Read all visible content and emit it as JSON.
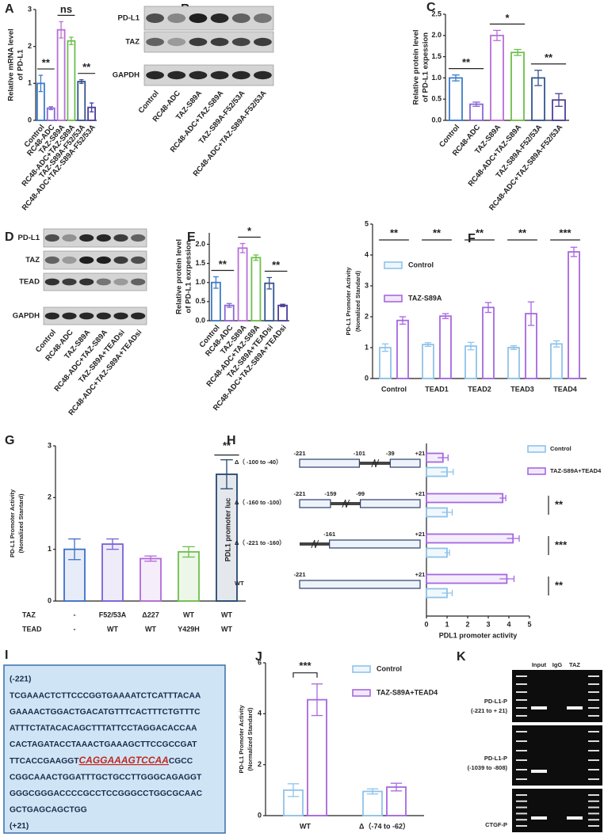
{
  "chart_data": [
    {
      "type": "bar",
      "panel": "A",
      "ylabel": [
        "Relative mRNA level",
        "of PD-L1"
      ],
      "categories": [
        "Control",
        "RC48-ADC",
        "TAZ-S89A",
        "RC48-ADC+TAZ-S89A",
        "TAZ-S89A-F52/53A",
        "RC48-ADC+TAZ-S89A-F52/53A"
      ],
      "values": [
        1.0,
        0.33,
        2.45,
        2.15,
        1.05,
        0.35
      ],
      "errors": [
        0.22,
        0.04,
        0.22,
        0.1,
        0.05,
        0.12
      ],
      "colors": [
        "#3d7cc9",
        "#8a66d6",
        "#b86ed8",
        "#6cbf4b",
        "#34548f",
        "#4a3f9a"
      ],
      "ylim": [
        0,
        3
      ],
      "yticks": [
        0,
        1,
        2,
        3
      ],
      "annotations": [
        "**",
        "ns",
        "**"
      ]
    },
    {
      "type": "bar",
      "panel": "C",
      "ylabel": [
        "Relative protein level",
        "of PD-L1 expession"
      ],
      "categories": [
        "Control",
        "RC48-ADC",
        "TAZ-S89A",
        "RC48-ADC+TAZ-S89A",
        "TAZ-S89A-F52/53A",
        "RC48-ADC+TAZ-S89A-F52/53A"
      ],
      "values": [
        1.0,
        0.38,
        2.0,
        1.6,
        1.0,
        0.48
      ],
      "errors": [
        0.07,
        0.05,
        0.12,
        0.07,
        0.18,
        0.15
      ],
      "colors": [
        "#3d7cc9",
        "#8a66d6",
        "#b86ed8",
        "#6cbf4b",
        "#34548f",
        "#4a3f9a"
      ],
      "ylim": [
        0,
        2.5
      ],
      "yticks": [
        {
          "value": 0,
          "label": "0.0"
        },
        {
          "value": 0.5,
          "label": "0.5"
        },
        {
          "value": 1,
          "label": "1.0"
        },
        {
          "value": 1.5,
          "label": "1.5"
        },
        {
          "value": 2,
          "label": "2.0"
        },
        {
          "value": 2.5,
          "label": "2.5"
        }
      ],
      "annotations": [
        "**",
        "*",
        "**"
      ]
    },
    {
      "type": "bar",
      "panel": "E",
      "ylabel": [
        "Relative protein level",
        "of PD-L1 exrpession"
      ],
      "categories": [
        "Control",
        "RC48-ADC",
        "TAZ-S89A",
        "RC48-ADC+TAZ-S89A",
        "TAZ-S89A+TEADsi",
        "RC48-ADC+TAZ-S89A+TEADsi"
      ],
      "values": [
        1.0,
        0.4,
        1.9,
        1.65,
        0.98,
        0.4
      ],
      "errors": [
        0.15,
        0.05,
        0.12,
        0.07,
        0.15,
        0.03
      ],
      "colors": [
        "#3d7cc9",
        "#8a66d6",
        "#b86ed8",
        "#6cbf4b",
        "#34548f",
        "#4a3f9a"
      ],
      "ylim": [
        0,
        2.3
      ],
      "yticks": [
        {
          "value": 0,
          "label": "0.0"
        },
        {
          "value": 0.5,
          "label": "0.5"
        },
        {
          "value": 1,
          "label": "1.0"
        },
        {
          "value": 1.5,
          "label": "1.5"
        },
        {
          "value": 2,
          "label": "2.0"
        }
      ],
      "annotations": [
        "**",
        "*",
        "**"
      ]
    },
    {
      "type": "bar",
      "panel": "F",
      "ylabel": [
        "PD-L1 Promoter Activity",
        "(Nomalized Standard)"
      ],
      "categories": [
        "Control",
        "TEAD1",
        "TEAD2",
        "TEAD3",
        "TEAD4"
      ],
      "series": [
        {
          "name": "Control",
          "color": "#8fc3ea",
          "values": [
            1.0,
            1.1,
            1.05,
            1.0,
            1.12
          ],
          "errors": [
            0.12,
            0.06,
            0.12,
            0.06,
            0.1
          ]
        },
        {
          "name": "TAZ-S89A",
          "color": "#a668e0",
          "values": [
            1.88,
            2.02,
            2.3,
            2.1,
            4.1
          ],
          "errors": [
            0.12,
            0.08,
            0.16,
            0.38,
            0.15
          ]
        }
      ],
      "ylim": [
        0,
        5
      ],
      "yticks": [
        0,
        1,
        2,
        3,
        4,
        5
      ],
      "annotations": [
        "**",
        "**",
        "**",
        "**",
        "***"
      ]
    },
    {
      "type": "bar",
      "panel": "G",
      "ylabel": [
        "PD-L1 Promoter Activity",
        "(Nomalized Stantard)"
      ],
      "table": {
        "row_labels": [
          "TAZ",
          "TEAD"
        ],
        "rows": [
          [
            "-",
            "F52/53A",
            "Δ227",
            "WT",
            "WT"
          ],
          [
            "-",
            "WT",
            "WT",
            "Y429H",
            "WT"
          ]
        ]
      },
      "values": [
        1.0,
        1.1,
        0.82,
        0.95,
        2.45
      ],
      "errors": [
        0.2,
        0.1,
        0.05,
        0.1,
        0.28
      ],
      "colors": [
        "#3d6fc9",
        "#7a5fd6",
        "#b06ad8",
        "#6cbf4b",
        "#23456f"
      ],
      "ylim": [
        0,
        3
      ],
      "yticks": [
        0,
        1,
        2,
        3
      ],
      "annotations": [
        null,
        null,
        null,
        null,
        "**"
      ]
    },
    {
      "type": "hbar",
      "panel": "H",
      "ylabel": "PDL1 promoter luc",
      "xlabel": "PDL1 promoter activity",
      "categories": [
        "Δ（ -100 to -40）",
        "Δ（ -160 to -100）",
        "Δ（ -221 to -160）",
        "WT"
      ],
      "series": [
        {
          "name": "Control",
          "color": "#8fc3ea",
          "values": [
            1.0,
            1.0,
            1.0,
            1.0
          ],
          "errors": [
            0.3,
            0.25,
            0.12,
            0.25
          ]
        },
        {
          "name": "TAZ-S89A+TEAD4",
          "color": "#a668e0",
          "values": [
            0.8,
            3.7,
            4.2,
            3.9
          ],
          "errors": [
            0.25,
            0.15,
            0.3,
            0.35
          ]
        }
      ],
      "xlim": [
        0,
        5
      ],
      "xticks": [
        0,
        1,
        2,
        3,
        4,
        5
      ],
      "annotations": [
        null,
        "**",
        "***",
        "**"
      ],
      "constructs": [
        [
          "-221",
          "-101",
          "-39",
          "+21"
        ],
        [
          "-221",
          "-159",
          "-99",
          "+21"
        ],
        [
          "-161",
          "+21"
        ],
        [
          "-221",
          "+21"
        ]
      ]
    },
    {
      "type": "bar",
      "panel": "J",
      "ylabel": [
        "PD-L1 Promoter Activity",
        "(Normalized Standard)"
      ],
      "categories": [
        "WT",
        "Δ（-74 to -62）"
      ],
      "series": [
        {
          "name": "Control",
          "color": "#8fc3ea",
          "values": [
            1.0,
            0.95
          ],
          "errors": [
            0.25,
            0.1
          ]
        },
        {
          "name": "TAZ-S89A+TEAD4",
          "color": "#a668e0",
          "values": [
            4.55,
            1.12
          ],
          "errors": [
            0.62,
            0.15
          ]
        }
      ],
      "ylim": [
        0,
        6
      ],
      "yticks": [
        0,
        2,
        4,
        6
      ],
      "annotations": [
        "***",
        null
      ]
    }
  ],
  "blots": [
    {
      "panel": "B",
      "rows": [
        "PD-L1",
        "TAZ",
        "GAPDH"
      ],
      "lanes": [
        "Control",
        "RC48-ADC",
        "TAZ-S89A",
        "RC48-ADC+TAZ-S89A",
        "TAZ-S89A-F52/53A",
        "RC48-ADC+TAZ-S89A-F52/53A"
      ]
    },
    {
      "panel": "D",
      "rows": [
        "PD-L1",
        "TAZ",
        "TEAD",
        "GAPDH"
      ],
      "lanes": [
        "Control",
        "RC48-ADC",
        "TAZ-S89A",
        "RC48-ADC+TAZ-S89A",
        "TAZ-S89A+TEADsi",
        "RC48-ADC+TAZ-S89A+TEADsi"
      ]
    }
  ],
  "sequence": {
    "panel": "I",
    "start": "(-221)",
    "lines": [
      "TCGAAACTCTTCCCGGTGAAAATCTCATTTACAA",
      "GAAAACTGGACTGACATGTTTCACTTTCTGTTTC",
      "ATTTCTATACACAGCTTTATTCCTAGGACACCAA",
      "CACTAGATACCTAAACTGAAAGCTTCCGCCGAT",
      [
        "TTCACCGAAGGT",
        "CAGGAAAGTCCAA",
        "CGCC"
      ],
      "CGGCAAACTGGATTTGCTGCCTTGGGCAGAGGT",
      "GGGCGGGACCCCGCCTCCGGGCCTGGCGCAAC",
      "GCTGAGCAGCTGG"
    ],
    "end": "(+21)"
  },
  "chip": {
    "panel": "K",
    "columns": [
      "Input",
      "IgG",
      "TAZ"
    ],
    "rows": [
      [
        "PD-L1-P",
        "(-221 to + 21)"
      ],
      [
        "PD-L1-P",
        "(-1039 to -808)"
      ],
      [
        "CTGF-P"
      ]
    ]
  }
}
